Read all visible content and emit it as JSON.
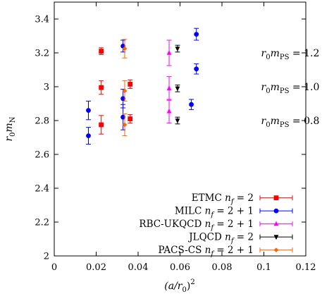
{
  "chart_data": {
    "type": "scatter",
    "title": "",
    "xlabel": {
      "prefix": "(a/r",
      "sub": "0",
      "suffix": ")",
      "sup": "2"
    },
    "ylabel": {
      "r": "r",
      "r_sub": "0",
      "m": "m",
      "m_sub": "N"
    },
    "xlim": [
      0,
      0.12
    ],
    "ylim": [
      2,
      3.5
    ],
    "x_ticks": [
      0,
      0.02,
      0.04,
      0.06,
      0.08,
      0.1,
      0.12
    ],
    "x_tick_labels": [
      "0",
      "0.02",
      "0.04",
      "0.06",
      "0.08",
      "0.1",
      "0.12"
    ],
    "y_ticks": [
      2,
      2.2,
      2.4,
      2.6,
      2.8,
      3,
      3.2,
      3.4
    ],
    "y_tick_labels": [
      "2",
      "2.2",
      "2.4",
      "2.6",
      "2.8",
      "3",
      "3.2",
      "3.4"
    ],
    "grid": false,
    "legend_position": "bottom-right",
    "annotations": [
      {
        "text_main": "r",
        "text_sub0": "0",
        "text_m": "m",
        "text_sub": "PS",
        "text_eq": " = 1.2",
        "x": 0.1,
        "y": 3.2
      },
      {
        "text_main": "r",
        "text_sub0": "0",
        "text_m": "m",
        "text_sub": "PS",
        "text_eq": " = 1.0",
        "x": 0.1,
        "y": 3.0
      },
      {
        "text_main": "r",
        "text_sub0": "0",
        "text_m": "m",
        "text_sub": "PS",
        "text_eq": " = 0.8",
        "x": 0.1,
        "y": 2.8
      }
    ],
    "series": [
      {
        "name": "ETMC",
        "name_detail": {
          "n": "n",
          "sub": "f",
          "eq": " = 2"
        },
        "color": "#ff0000",
        "marker": "square",
        "points": [
          {
            "x": 0.0224,
            "y": 3.21,
            "err": 0.02
          },
          {
            "x": 0.0224,
            "y": 2.995,
            "err": 0.04
          },
          {
            "x": 0.0224,
            "y": 2.775,
            "err": 0.055
          },
          {
            "x": 0.0362,
            "y": 3.015,
            "err": 0.025
          },
          {
            "x": 0.0362,
            "y": 2.81,
            "err": 0.025
          }
        ]
      },
      {
        "name": "MILC",
        "name_detail": {
          "n": "n",
          "sub": "f",
          "eq": " = 2 + 1"
        },
        "color": "#0000ff",
        "marker": "circle",
        "points": [
          {
            "x": 0.0163,
            "y": 2.86,
            "err": 0.055
          },
          {
            "x": 0.0163,
            "y": 2.71,
            "err": 0.05
          },
          {
            "x": 0.0328,
            "y": 3.24,
            "err": 0.035
          },
          {
            "x": 0.0328,
            "y": 2.93,
            "err": 0.055
          },
          {
            "x": 0.0328,
            "y": 2.82,
            "err": 0.075
          },
          {
            "x": 0.0654,
            "y": 2.895,
            "err": 0.03
          },
          {
            "x": 0.0678,
            "y": 3.31,
            "err": 0.035
          },
          {
            "x": 0.0678,
            "y": 3.105,
            "err": 0.03
          }
        ]
      },
      {
        "name": "RBC-UKQCD",
        "name_detail": {
          "n": "n",
          "sub": "f",
          "eq": " = 2 + 1"
        },
        "color": "#ff00ff",
        "marker": "triangle-up",
        "points": [
          {
            "x": 0.0548,
            "y": 3.2,
            "err": 0.075
          },
          {
            "x": 0.0548,
            "y": 2.99,
            "err": 0.07
          },
          {
            "x": 0.0548,
            "y": 2.855,
            "err": 0.07
          }
        ]
      },
      {
        "name": "JLQCD",
        "name_detail": {
          "n": "n",
          "sub": "f",
          "eq": " = 2"
        },
        "color": "#000000",
        "marker": "triangle-down",
        "points": [
          {
            "x": 0.0588,
            "y": 3.225,
            "err": 0.02
          },
          {
            "x": 0.0588,
            "y": 2.99,
            "err": 0.02
          },
          {
            "x": 0.0588,
            "y": 2.8,
            "err": 0.02
          }
        ]
      },
      {
        "name": "PACS-CS",
        "name_detail": {
          "n": "n",
          "sub": "f",
          "eq": " = 2 + 1"
        },
        "color": "#ff6600",
        "marker": "diamond",
        "points": [
          {
            "x": 0.0336,
            "y": 3.225,
            "err": 0.055
          },
          {
            "x": 0.0336,
            "y": 2.975,
            "err": 0.06
          },
          {
            "x": 0.0336,
            "y": 2.775,
            "err": 0.065
          }
        ]
      }
    ]
  }
}
